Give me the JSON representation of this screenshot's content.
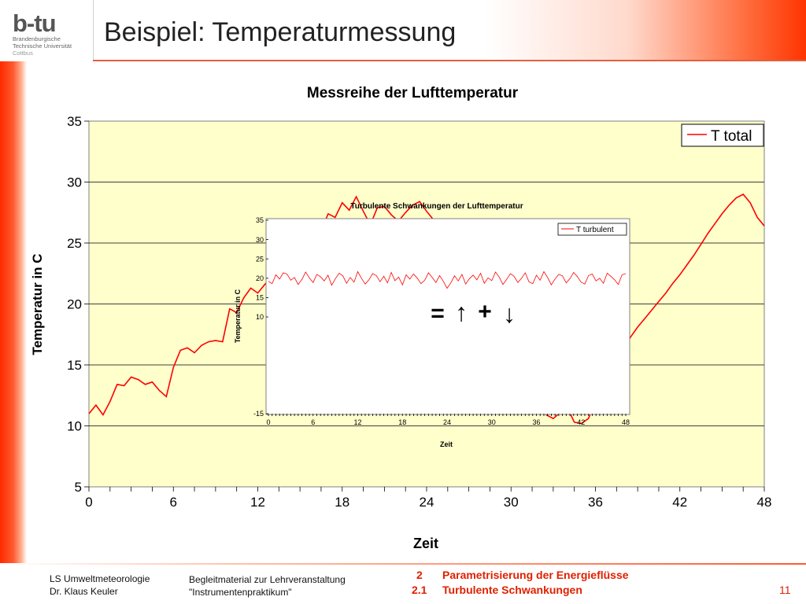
{
  "logo": {
    "mark_text": "b-tu",
    "lines": [
      "Brandenburgische",
      "Technische Universität",
      "Cottbus"
    ]
  },
  "slide_title": "Beispiel: Temperaturmessung",
  "chart_data": [
    {
      "type": "line",
      "title": "Messreihe der Lufttemperatur",
      "xlabel": "Zeit",
      "ylabel": "Temperatur in C",
      "xlim": [
        0,
        48
      ],
      "ylim": [
        5,
        35
      ],
      "xticks": [
        0,
        6,
        12,
        18,
        24,
        30,
        36,
        42,
        48
      ],
      "yticks": [
        5,
        10,
        15,
        20,
        25,
        30,
        35
      ],
      "grid": "horizontal",
      "legend": "top-right",
      "plot_background": "#ffffcc",
      "series": [
        {
          "name": "T total",
          "color": "#ff0000",
          "x": [
            0,
            0.5,
            1,
            1.5,
            2,
            2.5,
            3,
            3.5,
            4,
            4.5,
            5,
            5.5,
            6,
            6.5,
            7,
            7.5,
            8,
            8.5,
            9,
            9.5,
            10,
            10.5,
            11,
            11.5,
            12,
            12.5,
            13,
            13.5,
            14,
            14.5,
            15,
            15.5,
            16,
            16.5,
            17,
            17.5,
            18,
            18.5,
            19,
            19.5,
            20,
            20.5,
            21,
            21.5,
            22,
            22.5,
            23,
            23.5,
            24,
            24.5,
            25,
            25.5,
            26,
            26.5,
            27,
            27.5,
            28,
            28.5,
            29,
            29.5,
            30,
            30.5,
            31,
            31.5,
            32,
            32.5,
            33,
            33.5,
            34,
            34.5,
            35,
            35.5,
            36,
            36.5,
            37,
            37.5,
            38,
            38.5,
            39,
            39.5,
            40,
            40.5,
            41,
            41.5,
            42,
            42.5,
            43,
            43.5,
            44,
            44.5,
            45,
            45.5,
            46,
            46.5,
            47,
            47.5,
            48
          ],
          "values": [
            11.0,
            11.7,
            10.9,
            12.0,
            13.4,
            13.3,
            14.0,
            13.8,
            13.4,
            13.6,
            12.9,
            12.4,
            14.8,
            16.2,
            16.4,
            16.0,
            16.6,
            16.9,
            17.0,
            16.9,
            19.6,
            19.3,
            20.5,
            21.3,
            20.9,
            21.6,
            22.2,
            21.9,
            23.0,
            23.8,
            24.6,
            25.4,
            25.1,
            26.0,
            27.4,
            27.1,
            28.3,
            27.7,
            28.8,
            27.6,
            26.5,
            27.9,
            28.0,
            27.3,
            26.8,
            27.5,
            28.1,
            28.4,
            27.6,
            26.9,
            25.8,
            24.7,
            23.8,
            22.6,
            21.4,
            20.2,
            19.1,
            17.9,
            16.8,
            15.6,
            14.5,
            13.6,
            12.7,
            11.9,
            11.3,
            10.9,
            10.6,
            11.1,
            11.5,
            10.3,
            10.2,
            10.6,
            12.0,
            13.2,
            14.3,
            15.4,
            16.4,
            17.3,
            18.1,
            18.8,
            19.5,
            20.2,
            20.9,
            21.7,
            22.4,
            23.2,
            24.0,
            24.9,
            25.8,
            26.6,
            27.4,
            28.1,
            28.7,
            29.0,
            28.3,
            27.1,
            26.4
          ]
        }
      ]
    },
    {
      "type": "line",
      "title": "Turbulente Schwankungen der Lufttemperatur",
      "xlabel": "Zeit",
      "ylabel": "Temperatur in C",
      "xlim": [
        0,
        48
      ],
      "ylim": [
        -15,
        35
      ],
      "xticks": [
        0,
        6,
        12,
        18,
        24,
        30,
        36,
        42,
        48
      ],
      "yticks": [
        -15,
        10,
        15,
        20,
        25,
        30,
        35
      ],
      "grid": "none",
      "legend": "top-right",
      "series": [
        {
          "name": "T turbulent",
          "color": "#ff0000",
          "x": [
            0,
            0.5,
            1,
            1.5,
            2,
            2.5,
            3,
            3.5,
            4,
            4.5,
            5,
            5.5,
            6,
            6.5,
            7,
            7.5,
            8,
            8.5,
            9,
            9.5,
            10,
            10.5,
            11,
            11.5,
            12,
            12.5,
            13,
            13.5,
            14,
            14.5,
            15,
            15.5,
            16,
            16.5,
            17,
            17.5,
            18,
            18.5,
            19,
            19.5,
            20,
            20.5,
            21,
            21.5,
            22,
            22.5,
            23,
            23.5,
            24,
            24.5,
            25,
            25.5,
            26,
            26.5,
            27,
            27.5,
            28,
            28.5,
            29,
            29.5,
            30,
            30.5,
            31,
            31.5,
            32,
            32.5,
            33,
            33.5,
            34,
            34.5,
            35,
            35.5,
            36,
            36.5,
            37,
            37.5,
            38,
            38.5,
            39,
            39.5,
            40,
            40.5,
            41,
            41.5,
            42,
            42.5,
            43,
            43.5,
            44,
            44.5,
            45,
            45.5,
            46,
            46.5,
            47,
            47.5,
            48
          ],
          "values": [
            19.2,
            18.6,
            20.9,
            19.8,
            21.4,
            21.1,
            19.5,
            20.2,
            18.4,
            19.7,
            21.6,
            20.1,
            18.9,
            21.0,
            20.4,
            19.3,
            20.8,
            18.2,
            19.9,
            21.3,
            20.6,
            18.7,
            20.2,
            19.0,
            21.7,
            20.0,
            18.5,
            19.6,
            21.2,
            20.7,
            19.1,
            20.5,
            18.8,
            21.5,
            19.4,
            20.3,
            18.3,
            20.9,
            19.8,
            21.1,
            20.0,
            18.6,
            19.5,
            21.4,
            20.2,
            18.9,
            20.7,
            19.2,
            17.4,
            18.8,
            20.6,
            19.3,
            21.0,
            18.5,
            19.9,
            20.8,
            19.6,
            21.3,
            18.7,
            20.1,
            19.4,
            21.6,
            20.3,
            18.4,
            19.7,
            21.2,
            20.5,
            18.9,
            20.0,
            21.4,
            19.1,
            18.6,
            20.8,
            19.5,
            21.7,
            20.2,
            18.3,
            19.8,
            21.0,
            20.6,
            18.8,
            19.9,
            21.5,
            20.4,
            19.0,
            18.5,
            20.7,
            21.1,
            19.3,
            20.0,
            18.7,
            21.3,
            20.5,
            19.6,
            18.4,
            20.9,
            21.2
          ]
        }
      ]
    }
  ],
  "formula": {
    "equals": "=",
    "up_arrow": "↑",
    "plus": "+",
    "down_arrow": "↓"
  },
  "footer": {
    "left_lines": [
      "LS Umweltmeteorologie",
      "Dr. Klaus Keuler"
    ],
    "mid_lines": [
      "Begleitmaterial zur Lehrveranstaltung",
      "\"Instrumentenpraktikum\""
    ],
    "section_numbers": [
      "2",
      "2.1"
    ],
    "section_titles": [
      "Parametrisierung der Energieflüsse",
      "Turbulente Schwankungen"
    ],
    "page_number": "11"
  }
}
